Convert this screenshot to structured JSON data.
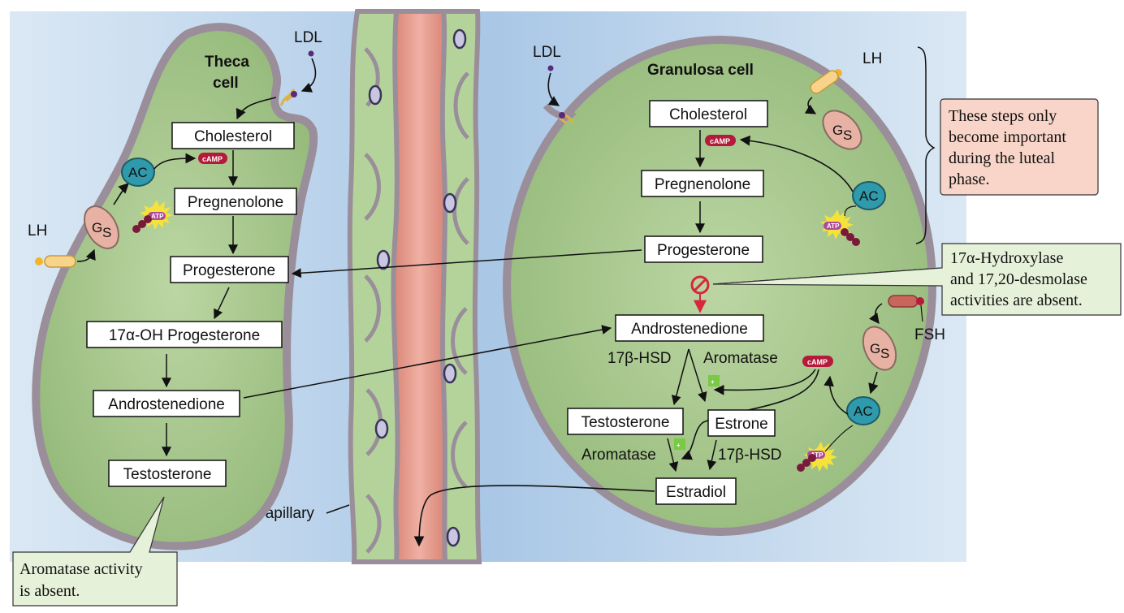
{
  "colors": {
    "background_blue": "#c9dcef",
    "cell_fill": "#a9c98e",
    "membrane": "#9a8e9a",
    "capillary_lumen": "#e29a8c",
    "capillary_wall": "#b3d39a",
    "note_green": "#e6f1d9",
    "note_pink": "#f8d5c8",
    "camp_red": "#b41a3a",
    "ac_teal": "#2f9aab",
    "gs_pink": "#e7b2a4",
    "inhibit_red": "#d8263c",
    "ldl_purple": "#5a2a7a"
  },
  "theca": {
    "title_line1": "Theca",
    "title_line2": "cell",
    "ldl": "LDL",
    "lh": "LH",
    "gs": "G",
    "gs_sub": "S",
    "ac": "AC",
    "camp": "cAMP",
    "atp": "ATP",
    "steps": [
      "Cholesterol",
      "Pregnenolone",
      "Progesterone",
      "17α-OH Progesterone",
      "Androstenedione",
      "Testosterone"
    ]
  },
  "granulosa": {
    "title": "Granulosa cell",
    "ldl": "LDL",
    "lh": "LH",
    "fsh": "FSH",
    "gs": "G",
    "gs_sub": "S",
    "ac": "AC",
    "camp": "cAMP",
    "atp": "ATP",
    "plus": "+",
    "steps": {
      "cholesterol": "Cholesterol",
      "pregnenolone": "Pregnenolone",
      "progesterone": "Progesterone",
      "androstenedione": "Androstenedione",
      "testosterone": "Testosterone",
      "estrone": "Estrone",
      "estradiol": "Estradiol"
    },
    "enzymes": {
      "hsd_left": "17β-HSD",
      "aromatase_top": "Aromatase",
      "aromatase_bottom": "Aromatase",
      "hsd_right": "17β-HSD"
    }
  },
  "capillary_label": "Capillary",
  "notes": {
    "aromatase_absent": [
      "Aromatase activity",
      "is absent."
    ],
    "luteal": [
      "These steps only",
      "become important",
      "during the luteal",
      "phase."
    ],
    "hydroxylase_absent": [
      "17α-Hydroxylase",
      "and 17,20-desmolase",
      "activities are absent."
    ]
  }
}
